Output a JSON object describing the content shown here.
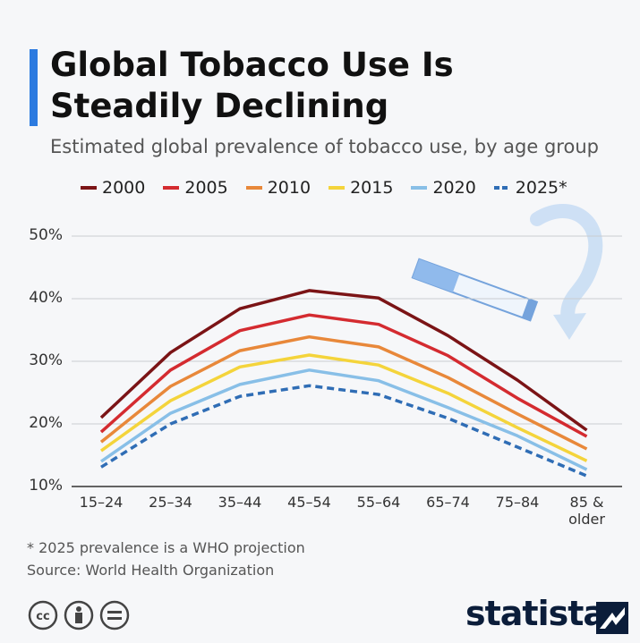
{
  "header": {
    "title": "Global Tobacco Use Is Steadily Declining",
    "subtitle": "Estimated global prevalence of tobacco use, by age group"
  },
  "chart_data": {
    "type": "line",
    "categories": [
      "15–24",
      "25–34",
      "35–44",
      "45–54",
      "55–64",
      "65–74",
      "75–84",
      "85 & older"
    ],
    "series": [
      {
        "name": "2000",
        "color": "#7b1416",
        "values": [
          21,
          31.4,
          38.4,
          41.3,
          40.1,
          34.1,
          27,
          19
        ]
      },
      {
        "name": "2005",
        "color": "#d42b30",
        "values": [
          18.7,
          28.6,
          34.9,
          37.4,
          35.9,
          30.9,
          24.1,
          18
        ]
      },
      {
        "name": "2010",
        "color": "#e8883a",
        "values": [
          17.1,
          26,
          31.7,
          33.9,
          32.3,
          27.4,
          21.6,
          16
        ]
      },
      {
        "name": "2015",
        "color": "#f4d43b",
        "values": [
          15.7,
          23.7,
          29.1,
          31,
          29.4,
          24.9,
          19.4,
          14.1
        ]
      },
      {
        "name": "2020",
        "color": "#88bfe7",
        "values": [
          14,
          21.7,
          26.3,
          28.6,
          26.9,
          22.6,
          18.1,
          12.7
        ]
      },
      {
        "name": "2025*",
        "color": "#2f6db5",
        "style": "dashed",
        "values": [
          13.1,
          20,
          24.4,
          26.1,
          24.7,
          20.9,
          16.3,
          11.7
        ]
      }
    ],
    "ylim": [
      10,
      50
    ],
    "yticks": [
      {
        "value": 10,
        "label": "10%"
      },
      {
        "value": 20,
        "label": "20%"
      },
      {
        "value": 30,
        "label": "30%"
      },
      {
        "value": 40,
        "label": "40%"
      },
      {
        "value": 50,
        "label": "50%"
      }
    ],
    "grid": true
  },
  "footer": {
    "note": "* 2025 prevalence is a WHO projection",
    "source": "Source: World Health Organization",
    "brand": "statista"
  }
}
